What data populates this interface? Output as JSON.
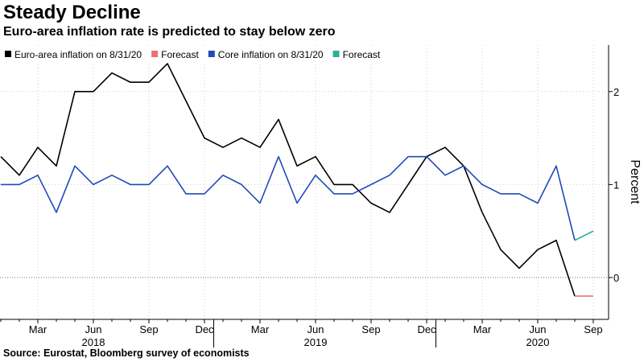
{
  "title": "Steady Decline",
  "subtitle": "Euro-area inflation rate is predicted to stay below zero",
  "source": "Source: Eurostat, Bloomberg survey of economists",
  "chart_data": {
    "type": "line",
    "title": "Steady Decline",
    "subtitle": "Euro-area inflation rate is predicted to stay below zero",
    "ylabel": "Percent",
    "ylim": [
      -0.45,
      2.5
    ],
    "yticks": [
      0,
      1,
      2
    ],
    "y_axis_side": "right",
    "grid": "vertical and horizontal dotted",
    "legend_position": "top-left",
    "x": [
      "2018-01",
      "2018-02",
      "2018-03",
      "2018-04",
      "2018-05",
      "2018-06",
      "2018-07",
      "2018-08",
      "2018-09",
      "2018-10",
      "2018-11",
      "2018-12",
      "2019-01",
      "2019-02",
      "2019-03",
      "2019-04",
      "2019-05",
      "2019-06",
      "2019-07",
      "2019-08",
      "2019-09",
      "2019-10",
      "2019-11",
      "2019-12",
      "2020-01",
      "2020-02",
      "2020-03",
      "2020-04",
      "2020-05",
      "2020-06",
      "2020-07",
      "2020-08",
      "2020-09"
    ],
    "x_tick_labels": [
      {
        "x": "2018-03",
        "label": "Mar"
      },
      {
        "x": "2018-06",
        "label": "Jun"
      },
      {
        "x": "2018-09",
        "label": "Sep"
      },
      {
        "x": "2018-12",
        "label": "Dec"
      },
      {
        "x": "2019-03",
        "label": "Mar"
      },
      {
        "x": "2019-06",
        "label": "Jun"
      },
      {
        "x": "2019-09",
        "label": "Sep"
      },
      {
        "x": "2019-12",
        "label": "Dec"
      },
      {
        "x": "2020-03",
        "label": "Mar"
      },
      {
        "x": "2020-06",
        "label": "Jun"
      },
      {
        "x": "2020-09",
        "label": "Sep"
      }
    ],
    "year_labels": [
      {
        "x": "2018-06",
        "label": "2018"
      },
      {
        "x": "2019-06",
        "label": "2019"
      },
      {
        "x": "2020-06",
        "label": "2020"
      }
    ],
    "year_dividers": [
      "2018-12",
      "2019-12"
    ],
    "series": [
      {
        "name": "Euro-area inflation on 8/31/20",
        "color": "#000000",
        "x": [
          "2018-01",
          "2018-02",
          "2018-03",
          "2018-04",
          "2018-05",
          "2018-06",
          "2018-07",
          "2018-08",
          "2018-09",
          "2018-10",
          "2018-11",
          "2018-12",
          "2019-01",
          "2019-02",
          "2019-03",
          "2019-04",
          "2019-05",
          "2019-06",
          "2019-07",
          "2019-08",
          "2019-09",
          "2019-10",
          "2019-11",
          "2019-12",
          "2020-01",
          "2020-02",
          "2020-03",
          "2020-04",
          "2020-05",
          "2020-06",
          "2020-07",
          "2020-08"
        ],
        "values": [
          1.3,
          1.1,
          1.4,
          1.2,
          2.0,
          2.0,
          2.2,
          2.1,
          2.1,
          2.3,
          1.9,
          1.5,
          1.4,
          1.5,
          1.4,
          1.7,
          1.2,
          1.3,
          1.0,
          1.0,
          0.8,
          0.7,
          1.0,
          1.3,
          1.4,
          1.2,
          0.7,
          0.3,
          0.1,
          0.3,
          0.4,
          -0.2
        ]
      },
      {
        "name": "Forecast",
        "color": "#f07070",
        "x": [
          "2020-08",
          "2020-09"
        ],
        "values": [
          -0.2,
          -0.2
        ]
      },
      {
        "name": "Core inflation on 8/31/20",
        "color": "#1f4ab8",
        "x": [
          "2018-01",
          "2018-02",
          "2018-03",
          "2018-04",
          "2018-05",
          "2018-06",
          "2018-07",
          "2018-08",
          "2018-09",
          "2018-10",
          "2018-11",
          "2018-12",
          "2019-01",
          "2019-02",
          "2019-03",
          "2019-04",
          "2019-05",
          "2019-06",
          "2019-07",
          "2019-08",
          "2019-09",
          "2019-10",
          "2019-11",
          "2019-12",
          "2020-01",
          "2020-02",
          "2020-03",
          "2020-04",
          "2020-05",
          "2020-06",
          "2020-07",
          "2020-08"
        ],
        "values": [
          1.0,
          1.0,
          1.1,
          0.7,
          1.2,
          1.0,
          1.1,
          1.0,
          1.0,
          1.2,
          0.9,
          0.9,
          1.1,
          1.0,
          0.8,
          1.3,
          0.8,
          1.1,
          0.9,
          0.9,
          1.0,
          1.1,
          1.3,
          1.3,
          1.1,
          1.2,
          1.0,
          0.9,
          0.9,
          0.8,
          1.2,
          0.4
        ]
      },
      {
        "name": "Forecast",
        "color": "#2ab098",
        "x": [
          "2020-08",
          "2020-09"
        ],
        "values": [
          0.4,
          0.5
        ]
      }
    ]
  }
}
